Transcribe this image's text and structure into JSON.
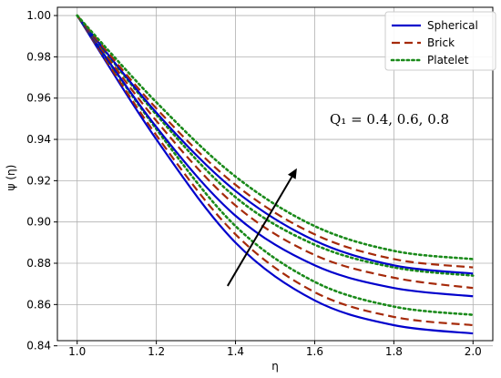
{
  "chart_data": {
    "type": "line",
    "title": "",
    "xlabel": "η",
    "ylabel": "ψ (η)",
    "xlim": [
      0.95,
      2.05
    ],
    "ylim": [
      0.8425,
      1.004
    ],
    "xticks": [
      1.0,
      1.2,
      1.4,
      1.6,
      1.8,
      2.0
    ],
    "xtick_labels": [
      "1.0",
      "1.2",
      "1.4",
      "1.6",
      "1.8",
      "2.0"
    ],
    "yticks": [
      0.84,
      0.86,
      0.88,
      0.9,
      0.92,
      0.94,
      0.96,
      0.98,
      1.0
    ],
    "ytick_labels": [
      "0.84",
      "0.86",
      "0.88",
      "0.90",
      "0.92",
      "0.94",
      "0.96",
      "0.98",
      "1.00"
    ],
    "grid": true,
    "legend_position": "top-right",
    "legend": [
      {
        "label": "Spherical",
        "color": "#0000cc",
        "style": "solid"
      },
      {
        "label": "Brick",
        "color": "#a52a0a",
        "style": "dashed"
      },
      {
        "label": "Platelet",
        "color": "#1a8a1a",
        "style": "dotted"
      }
    ],
    "series": [
      {
        "shape": "Spherical",
        "Q1": 0.4,
        "color": "#0000cc",
        "style": "solid",
        "x": [
          1.0,
          1.2,
          1.4,
          1.6,
          1.8,
          2.0
        ],
        "y": [
          1.0,
          0.94,
          0.89,
          0.862,
          0.85,
          0.846
        ]
      },
      {
        "shape": "Brick",
        "Q1": 0.4,
        "color": "#a52a0a",
        "style": "dashed",
        "x": [
          1.0,
          1.2,
          1.4,
          1.6,
          1.8,
          2.0
        ],
        "y": [
          1.0,
          0.942,
          0.894,
          0.866,
          0.854,
          0.85
        ]
      },
      {
        "shape": "Platelet",
        "Q1": 0.4,
        "color": "#1a8a1a",
        "style": "dotted",
        "x": [
          1.0,
          1.2,
          1.4,
          1.6,
          1.8,
          2.0
        ],
        "y": [
          1.0,
          0.945,
          0.898,
          0.871,
          0.859,
          0.855
        ]
      },
      {
        "shape": "Spherical",
        "Q1": 0.6,
        "color": "#0000cc",
        "style": "solid",
        "x": [
          1.0,
          1.2,
          1.4,
          1.6,
          1.8,
          2.0
        ],
        "y": [
          1.0,
          0.946,
          0.903,
          0.879,
          0.868,
          0.864
        ]
      },
      {
        "shape": "Brick",
        "Q1": 0.6,
        "color": "#a52a0a",
        "style": "dashed",
        "x": [
          1.0,
          1.2,
          1.4,
          1.6,
          1.8,
          2.0
        ],
        "y": [
          1.0,
          0.949,
          0.908,
          0.884,
          0.873,
          0.868
        ]
      },
      {
        "shape": "Platelet",
        "Q1": 0.6,
        "color": "#1a8a1a",
        "style": "dotted",
        "x": [
          1.0,
          1.2,
          1.4,
          1.6,
          1.8,
          2.0
        ],
        "y": [
          1.0,
          0.952,
          0.912,
          0.889,
          0.878,
          0.874
        ]
      },
      {
        "shape": "Spherical",
        "Q1": 0.8,
        "color": "#0000cc",
        "style": "solid",
        "x": [
          1.0,
          1.2,
          1.4,
          1.6,
          1.8,
          2.0
        ],
        "y": [
          1.0,
          0.953,
          0.915,
          0.891,
          0.879,
          0.875
        ]
      },
      {
        "shape": "Brick",
        "Q1": 0.8,
        "color": "#a52a0a",
        "style": "dashed",
        "x": [
          1.0,
          1.2,
          1.4,
          1.6,
          1.8,
          2.0
        ],
        "y": [
          1.0,
          0.955,
          0.918,
          0.894,
          0.882,
          0.878
        ]
      },
      {
        "shape": "Platelet",
        "Q1": 0.8,
        "color": "#1a8a1a",
        "style": "dotted",
        "x": [
          1.0,
          1.2,
          1.4,
          1.6,
          1.8,
          2.0
        ],
        "y": [
          1.0,
          0.958,
          0.922,
          0.898,
          0.886,
          0.882
        ]
      }
    ],
    "annotation": {
      "text": "Q₁ = 0.4, 0.6, 0.8",
      "arrow": {
        "from": [
          1.38,
          0.869
        ],
        "to": [
          1.555,
          0.926
        ]
      }
    }
  }
}
